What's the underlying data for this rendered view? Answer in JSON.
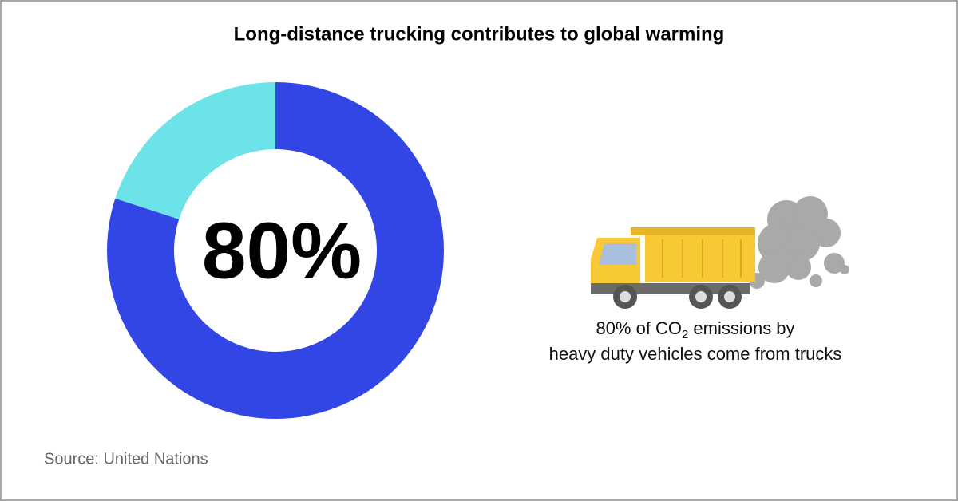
{
  "chart_data": {
    "type": "donut",
    "title": "Long-distance trucking contributes to global warming",
    "values": [
      80,
      20
    ],
    "colors": [
      "#3246e6",
      "#6ce3e8"
    ],
    "center_label": "80%",
    "caption": {
      "line1_start": "80% of CO",
      "subscript": "2",
      "line1_end": "emissions by",
      "line2": "heavy duty vehicles come from trucks"
    },
    "source": "Source: United Nations"
  }
}
